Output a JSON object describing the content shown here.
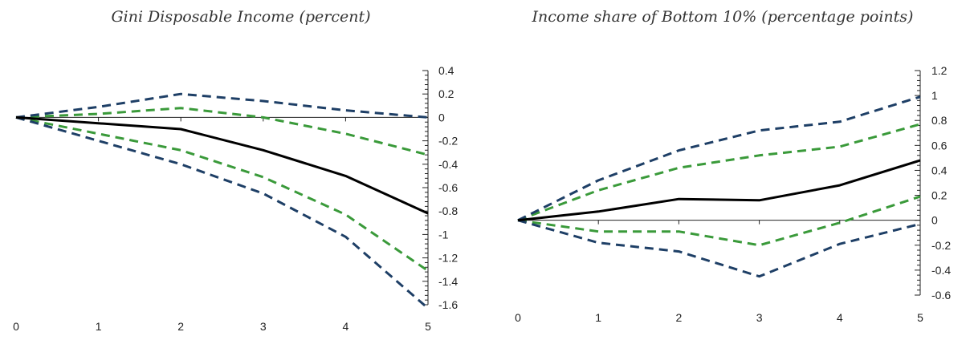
{
  "chart_data": [
    {
      "type": "line",
      "title": "Gini Disposable Income (percent)",
      "x": [
        0,
        1,
        2,
        3,
        4,
        5
      ],
      "ylim": [
        -1.6,
        0.4
      ],
      "y_ticks": [
        "0.4",
        "0.2",
        "0",
        "-0.2",
        "-0.4",
        "-0.6",
        "-0.8",
        "-1",
        "-1.2",
        "-1.4",
        "-1.6"
      ],
      "y_tick_values": [
        0.4,
        0.2,
        0,
        -0.2,
        -0.4,
        -0.6,
        -0.8,
        -1.0,
        -1.2,
        -1.4,
        -1.6
      ],
      "x_ticks": [
        "0",
        "1",
        "2",
        "3",
        "4",
        "5"
      ],
      "y_axis_position": "right",
      "grid": false,
      "series": [
        {
          "values": [
            0,
            -0.05,
            -0.1,
            -0.28,
            -0.5,
            -0.82
          ],
          "color": "#000000",
          "style": "solid"
        },
        {
          "values": [
            0,
            0.03,
            0.08,
            0.0,
            -0.14,
            -0.32
          ],
          "color": "#3a9a3a",
          "style": "dashed"
        },
        {
          "values": [
            0,
            -0.14,
            -0.28,
            -0.51,
            -0.83,
            -1.31
          ],
          "color": "#3a9a3a",
          "style": "dashed"
        },
        {
          "values": [
            0,
            0.09,
            0.2,
            0.14,
            0.06,
            0.0
          ],
          "color": "#1e3f66",
          "style": "dashed"
        },
        {
          "values": [
            0,
            -0.2,
            -0.4,
            -0.65,
            -1.02,
            -1.63
          ],
          "color": "#1e3f66",
          "style": "dashed"
        }
      ]
    },
    {
      "type": "line",
      "title": "Income share of Bottom 10% (percentage points)",
      "x": [
        0,
        1,
        2,
        3,
        4,
        5
      ],
      "ylim": [
        -0.6,
        1.2
      ],
      "y_ticks": [
        "1.2",
        "1",
        "0.8",
        "0.6",
        "0.4",
        "0.2",
        "0",
        "-0.2",
        "-0.4",
        "-0.6"
      ],
      "y_tick_values": [
        1.2,
        1.0,
        0.8,
        0.6,
        0.4,
        0.2,
        0,
        -0.2,
        -0.4,
        -0.6
      ],
      "x_ticks": [
        "0",
        "1",
        "2",
        "3",
        "4",
        "5"
      ],
      "y_axis_position": "right",
      "grid": false,
      "series": [
        {
          "values": [
            0,
            0.07,
            0.17,
            0.16,
            0.28,
            0.48
          ],
          "color": "#000000",
          "style": "solid"
        },
        {
          "values": [
            0,
            0.24,
            0.42,
            0.52,
            0.59,
            0.77
          ],
          "color": "#3a9a3a",
          "style": "dashed"
        },
        {
          "values": [
            0,
            -0.09,
            -0.09,
            -0.2,
            -0.02,
            0.19
          ],
          "color": "#3a9a3a",
          "style": "dashed"
        },
        {
          "values": [
            0,
            0.32,
            0.56,
            0.72,
            0.79,
            0.99
          ],
          "color": "#1e3f66",
          "style": "dashed"
        },
        {
          "values": [
            0,
            -0.18,
            -0.25,
            -0.45,
            -0.19,
            -0.03
          ],
          "color": "#1e3f66",
          "style": "dashed"
        }
      ]
    }
  ]
}
